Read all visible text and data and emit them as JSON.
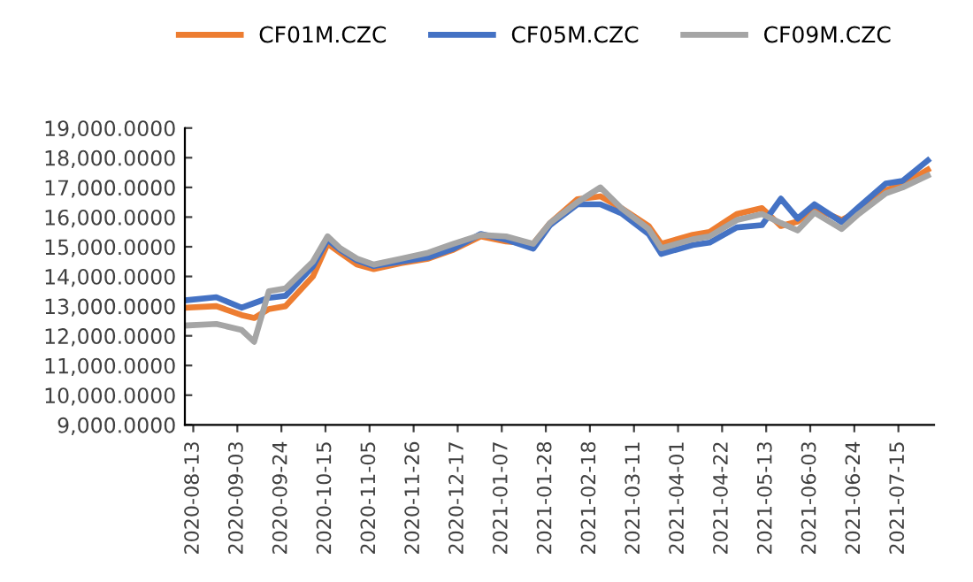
{
  "chart_data": {
    "type": "line",
    "legend": "top",
    "grid": false,
    "marker": "none",
    "line_style": "solid",
    "x": [
      "2020-08-10",
      "2020-08-24",
      "2020-09-05",
      "2020-09-11",
      "2020-09-18",
      "2020-09-26",
      "2020-10-09",
      "2020-10-16",
      "2020-10-22",
      "2020-10-30",
      "2020-11-07",
      "2020-11-20",
      "2020-12-03",
      "2020-12-15",
      "2020-12-28",
      "2021-01-09",
      "2021-01-22",
      "2021-01-30",
      "2021-02-12",
      "2021-02-23",
      "2021-03-05",
      "2021-03-18",
      "2021-03-24",
      "2021-04-08",
      "2021-04-16",
      "2021-04-29",
      "2021-05-11",
      "2021-05-20",
      "2021-05-28",
      "2021-06-05",
      "2021-06-18",
      "2021-06-26",
      "2021-07-09",
      "2021-07-17",
      "2021-07-29"
    ],
    "series": [
      {
        "name": "CF01M.CZC",
        "color": "#ed7d31",
        "values": [
          12950,
          13000,
          12700,
          12600,
          12900,
          13000,
          14000,
          15100,
          14800,
          14400,
          14250,
          14450,
          14600,
          14900,
          15350,
          15180,
          15100,
          15800,
          16600,
          16700,
          16300,
          15700,
          15100,
          15400,
          15500,
          16100,
          16300,
          15700,
          15850,
          16300,
          15900,
          16200,
          16900,
          17100,
          17600
        ]
      },
      {
        "name": "CF05M.CZC",
        "color": "#4472c4",
        "values": [
          13200,
          13300,
          12950,
          13100,
          13280,
          13350,
          14340,
          15240,
          14900,
          14540,
          14350,
          14500,
          14640,
          14940,
          15430,
          15240,
          14940,
          15730,
          16430,
          16430,
          16130,
          15430,
          14760,
          15060,
          15140,
          15650,
          15730,
          16620,
          15950,
          16430,
          15830,
          16330,
          17130,
          17220,
          17910
        ]
      },
      {
        "name": "CF09M.CZC",
        "color": "#a5a5a5",
        "values": [
          12350,
          12400,
          12200,
          11800,
          13500,
          13600,
          14500,
          15350,
          14950,
          14600,
          14400,
          14600,
          14800,
          15100,
          15400,
          15350,
          15100,
          15800,
          16500,
          17000,
          16300,
          15600,
          14950,
          15250,
          15350,
          15900,
          16100,
          15800,
          15550,
          16150,
          15600,
          16100,
          16800,
          17000,
          17400
        ]
      }
    ],
    "xlim": [
      "2020-08-09",
      "2021-08-01"
    ],
    "xticks": [
      "2020-08-13",
      "2020-09-03",
      "2020-09-24",
      "2020-10-15",
      "2020-11-05",
      "2020-11-26",
      "2020-12-17",
      "2021-01-07",
      "2021-01-28",
      "2021-02-18",
      "2021-03-11",
      "2021-04-01",
      "2021-04-22",
      "2021-05-13",
      "2021-06-03",
      "2021-06-24",
      "2021-07-15"
    ],
    "ylim": [
      9000,
      19000
    ],
    "yticks": [
      {
        "value": 9000,
        "label": "9,000.0000"
      },
      {
        "value": 10000,
        "label": "10,000.0000"
      },
      {
        "value": 11000,
        "label": "11,000.0000"
      },
      {
        "value": 12000,
        "label": "12,000.0000"
      },
      {
        "value": 13000,
        "label": "13,000.0000"
      },
      {
        "value": 14000,
        "label": "14,000.0000"
      },
      {
        "value": 15000,
        "label": "15,000.0000"
      },
      {
        "value": 16000,
        "label": "16,000.0000"
      },
      {
        "value": 17000,
        "label": "17,000.0000"
      },
      {
        "value": 18000,
        "label": "18,000.0000"
      },
      {
        "value": 19000,
        "label": "19,000.0000"
      }
    ]
  }
}
